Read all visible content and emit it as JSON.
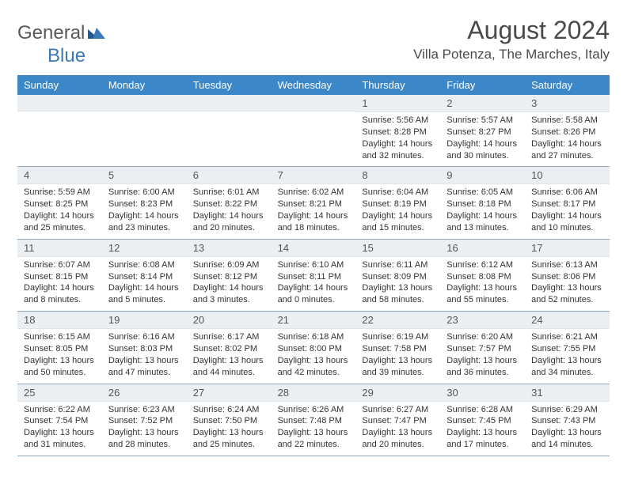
{
  "brand": {
    "general": "General",
    "blue": "Blue"
  },
  "title": {
    "month_year": "August 2024",
    "location": "Villa Potenza, The Marches, Italy"
  },
  "colors": {
    "header_bg": "#3c87c7",
    "header_text": "#ffffff",
    "daynum_bg": "#eceff1",
    "border": "#8ca6bd",
    "brand_blue": "#3b7ab5",
    "brand_gray": "#5a5a5a"
  },
  "day_labels": [
    "Sunday",
    "Monday",
    "Tuesday",
    "Wednesday",
    "Thursday",
    "Friday",
    "Saturday"
  ],
  "weeks": [
    [
      {
        "day": "",
        "sunrise": "",
        "sunset": "",
        "daylight": ""
      },
      {
        "day": "",
        "sunrise": "",
        "sunset": "",
        "daylight": ""
      },
      {
        "day": "",
        "sunrise": "",
        "sunset": "",
        "daylight": ""
      },
      {
        "day": "",
        "sunrise": "",
        "sunset": "",
        "daylight": ""
      },
      {
        "day": "1",
        "sunrise": "Sunrise: 5:56 AM",
        "sunset": "Sunset: 8:28 PM",
        "daylight": "Daylight: 14 hours and 32 minutes."
      },
      {
        "day": "2",
        "sunrise": "Sunrise: 5:57 AM",
        "sunset": "Sunset: 8:27 PM",
        "daylight": "Daylight: 14 hours and 30 minutes."
      },
      {
        "day": "3",
        "sunrise": "Sunrise: 5:58 AM",
        "sunset": "Sunset: 8:26 PM",
        "daylight": "Daylight: 14 hours and 27 minutes."
      }
    ],
    [
      {
        "day": "4",
        "sunrise": "Sunrise: 5:59 AM",
        "sunset": "Sunset: 8:25 PM",
        "daylight": "Daylight: 14 hours and 25 minutes."
      },
      {
        "day": "5",
        "sunrise": "Sunrise: 6:00 AM",
        "sunset": "Sunset: 8:23 PM",
        "daylight": "Daylight: 14 hours and 23 minutes."
      },
      {
        "day": "6",
        "sunrise": "Sunrise: 6:01 AM",
        "sunset": "Sunset: 8:22 PM",
        "daylight": "Daylight: 14 hours and 20 minutes."
      },
      {
        "day": "7",
        "sunrise": "Sunrise: 6:02 AM",
        "sunset": "Sunset: 8:21 PM",
        "daylight": "Daylight: 14 hours and 18 minutes."
      },
      {
        "day": "8",
        "sunrise": "Sunrise: 6:04 AM",
        "sunset": "Sunset: 8:19 PM",
        "daylight": "Daylight: 14 hours and 15 minutes."
      },
      {
        "day": "9",
        "sunrise": "Sunrise: 6:05 AM",
        "sunset": "Sunset: 8:18 PM",
        "daylight": "Daylight: 14 hours and 13 minutes."
      },
      {
        "day": "10",
        "sunrise": "Sunrise: 6:06 AM",
        "sunset": "Sunset: 8:17 PM",
        "daylight": "Daylight: 14 hours and 10 minutes."
      }
    ],
    [
      {
        "day": "11",
        "sunrise": "Sunrise: 6:07 AM",
        "sunset": "Sunset: 8:15 PM",
        "daylight": "Daylight: 14 hours and 8 minutes."
      },
      {
        "day": "12",
        "sunrise": "Sunrise: 6:08 AM",
        "sunset": "Sunset: 8:14 PM",
        "daylight": "Daylight: 14 hours and 5 minutes."
      },
      {
        "day": "13",
        "sunrise": "Sunrise: 6:09 AM",
        "sunset": "Sunset: 8:12 PM",
        "daylight": "Daylight: 14 hours and 3 minutes."
      },
      {
        "day": "14",
        "sunrise": "Sunrise: 6:10 AM",
        "sunset": "Sunset: 8:11 PM",
        "daylight": "Daylight: 14 hours and 0 minutes."
      },
      {
        "day": "15",
        "sunrise": "Sunrise: 6:11 AM",
        "sunset": "Sunset: 8:09 PM",
        "daylight": "Daylight: 13 hours and 58 minutes."
      },
      {
        "day": "16",
        "sunrise": "Sunrise: 6:12 AM",
        "sunset": "Sunset: 8:08 PM",
        "daylight": "Daylight: 13 hours and 55 minutes."
      },
      {
        "day": "17",
        "sunrise": "Sunrise: 6:13 AM",
        "sunset": "Sunset: 8:06 PM",
        "daylight": "Daylight: 13 hours and 52 minutes."
      }
    ],
    [
      {
        "day": "18",
        "sunrise": "Sunrise: 6:15 AM",
        "sunset": "Sunset: 8:05 PM",
        "daylight": "Daylight: 13 hours and 50 minutes."
      },
      {
        "day": "19",
        "sunrise": "Sunrise: 6:16 AM",
        "sunset": "Sunset: 8:03 PM",
        "daylight": "Daylight: 13 hours and 47 minutes."
      },
      {
        "day": "20",
        "sunrise": "Sunrise: 6:17 AM",
        "sunset": "Sunset: 8:02 PM",
        "daylight": "Daylight: 13 hours and 44 minutes."
      },
      {
        "day": "21",
        "sunrise": "Sunrise: 6:18 AM",
        "sunset": "Sunset: 8:00 PM",
        "daylight": "Daylight: 13 hours and 42 minutes."
      },
      {
        "day": "22",
        "sunrise": "Sunrise: 6:19 AM",
        "sunset": "Sunset: 7:58 PM",
        "daylight": "Daylight: 13 hours and 39 minutes."
      },
      {
        "day": "23",
        "sunrise": "Sunrise: 6:20 AM",
        "sunset": "Sunset: 7:57 PM",
        "daylight": "Daylight: 13 hours and 36 minutes."
      },
      {
        "day": "24",
        "sunrise": "Sunrise: 6:21 AM",
        "sunset": "Sunset: 7:55 PM",
        "daylight": "Daylight: 13 hours and 34 minutes."
      }
    ],
    [
      {
        "day": "25",
        "sunrise": "Sunrise: 6:22 AM",
        "sunset": "Sunset: 7:54 PM",
        "daylight": "Daylight: 13 hours and 31 minutes."
      },
      {
        "day": "26",
        "sunrise": "Sunrise: 6:23 AM",
        "sunset": "Sunset: 7:52 PM",
        "daylight": "Daylight: 13 hours and 28 minutes."
      },
      {
        "day": "27",
        "sunrise": "Sunrise: 6:24 AM",
        "sunset": "Sunset: 7:50 PM",
        "daylight": "Daylight: 13 hours and 25 minutes."
      },
      {
        "day": "28",
        "sunrise": "Sunrise: 6:26 AM",
        "sunset": "Sunset: 7:48 PM",
        "daylight": "Daylight: 13 hours and 22 minutes."
      },
      {
        "day": "29",
        "sunrise": "Sunrise: 6:27 AM",
        "sunset": "Sunset: 7:47 PM",
        "daylight": "Daylight: 13 hours and 20 minutes."
      },
      {
        "day": "30",
        "sunrise": "Sunrise: 6:28 AM",
        "sunset": "Sunset: 7:45 PM",
        "daylight": "Daylight: 13 hours and 17 minutes."
      },
      {
        "day": "31",
        "sunrise": "Sunrise: 6:29 AM",
        "sunset": "Sunset: 7:43 PM",
        "daylight": "Daylight: 13 hours and 14 minutes."
      }
    ]
  ]
}
